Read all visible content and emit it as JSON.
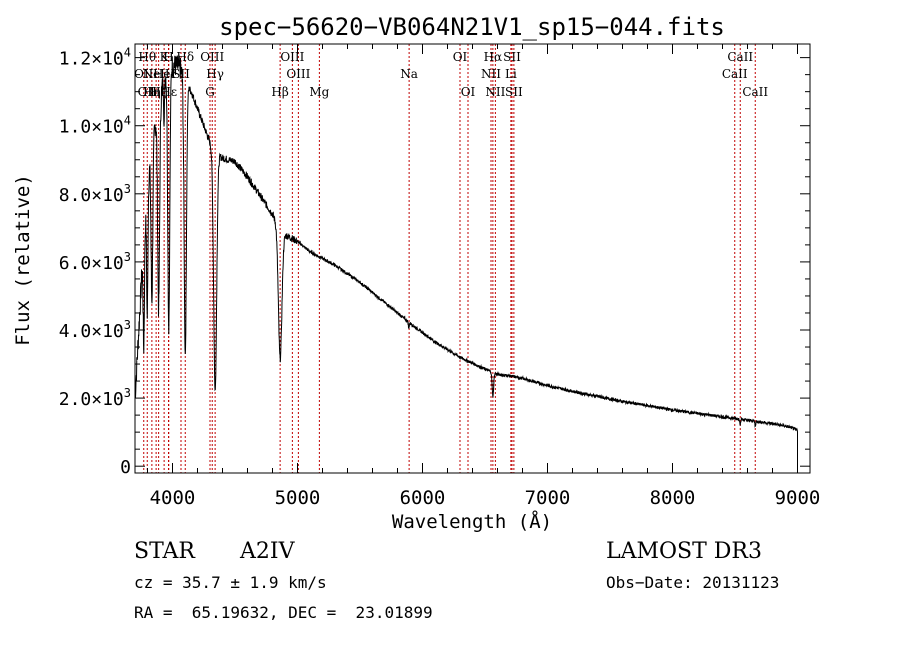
{
  "chart_data": {
    "type": "line",
    "title": "spec−56620−VB064N21V1_sp15−044.fits",
    "xlabel": "Wavelength (Å)",
    "ylabel": "Flux (relative)",
    "xlim": [
      3700,
      9100
    ],
    "ylim": [
      -200,
      12400
    ],
    "xticks": [
      4000,
      5000,
      6000,
      7000,
      8000,
      9000
    ],
    "yticks": [
      {
        "value": 0,
        "mant": "0",
        "exp": ""
      },
      {
        "value": 2000,
        "mant": "2.0×10",
        "exp": "3"
      },
      {
        "value": 4000,
        "mant": "4.0×10",
        "exp": "3"
      },
      {
        "value": 6000,
        "mant": "6.0×10",
        "exp": "3"
      },
      {
        "value": 8000,
        "mant": "8.0×10",
        "exp": "3"
      },
      {
        "value": 10000,
        "mant": "1.0×10",
        "exp": "4"
      },
      {
        "value": 12000,
        "mant": "1.2×10",
        "exp": "4"
      }
    ],
    "spectrum": {
      "continuum": [
        [
          3700,
          2000
        ],
        [
          3760,
          6000
        ],
        [
          3820,
          9000
        ],
        [
          3880,
          10500
        ],
        [
          3940,
          11500
        ],
        [
          4000,
          11800
        ],
        [
          4060,
          11700
        ],
        [
          4100,
          11300
        ],
        [
          4150,
          11000
        ],
        [
          4200,
          10500
        ],
        [
          4250,
          10000
        ],
        [
          4300,
          9500
        ],
        [
          4340,
          9200
        ],
        [
          4400,
          9050
        ],
        [
          4500,
          8950
        ],
        [
          4600,
          8500
        ],
        [
          4700,
          7950
        ],
        [
          4800,
          7400
        ],
        [
          4850,
          7000
        ],
        [
          4900,
          6800
        ],
        [
          5000,
          6600
        ],
        [
          5100,
          6300
        ],
        [
          5300,
          5900
        ],
        [
          5500,
          5400
        ],
        [
          5700,
          4800
        ],
        [
          5900,
          4200
        ],
        [
          6100,
          3650
        ],
        [
          6300,
          3200
        ],
        [
          6500,
          2850
        ],
        [
          6600,
          2700
        ],
        [
          6700,
          2650
        ],
        [
          6800,
          2580
        ],
        [
          7000,
          2370
        ],
        [
          7200,
          2200
        ],
        [
          7400,
          2050
        ],
        [
          7600,
          1900
        ],
        [
          7800,
          1780
        ],
        [
          8000,
          1650
        ],
        [
          8200,
          1550
        ],
        [
          8400,
          1450
        ],
        [
          8600,
          1350
        ],
        [
          8800,
          1250
        ],
        [
          8900,
          1180
        ],
        [
          8950,
          1130
        ],
        [
          9000,
          1050
        ]
      ],
      "absorption_lines": [
        [
          3770,
          3000,
          5
        ],
        [
          3798,
          3500,
          5
        ],
        [
          3835,
          4500,
          7
        ],
        [
          3889,
          6000,
          8
        ],
        [
          3933,
          1500,
          3
        ],
        [
          3970,
          7500,
          8
        ],
        [
          4102,
          8000,
          9
        ],
        [
          4341,
          7000,
          12
        ],
        [
          4861,
          3800,
          14
        ],
        [
          5890,
          200,
          3
        ],
        [
          6563,
          700,
          6
        ],
        [
          8542,
          150,
          3
        ],
        [
          8662,
          150,
          3
        ]
      ]
    },
    "line_markers": [
      {
        "wavelength": 3770,
        "label": "OII",
        "row": 1
      },
      {
        "wavelength": 3798,
        "label": "Hθ",
        "row": 0
      },
      {
        "wavelength": 3798,
        "label": "OII",
        "row": 2
      },
      {
        "wavelength": 3835,
        "label": "Hη",
        "row": 2
      },
      {
        "wavelength": 3869,
        "label": "NeII",
        "row": 1
      },
      {
        "wavelength": 3889,
        "label": "Hζ",
        "row": 2
      },
      {
        "wavelength": 3933,
        "label": "K",
        "row": 0
      },
      {
        "wavelength": 3933,
        "label": "HeI",
        "row": 1
      },
      {
        "wavelength": 3968,
        "label": "H",
        "row": 0
      },
      {
        "wavelength": 3970,
        "label": "Hε",
        "row": 2
      },
      {
        "wavelength": 4068,
        "label": "SII",
        "row": 1
      },
      {
        "wavelength": 4102,
        "label": "Hδ",
        "row": 0
      },
      {
        "wavelength": 4300,
        "label": "G",
        "row": 2
      },
      {
        "wavelength": 4318,
        "label": "OIII",
        "row": 0
      },
      {
        "wavelength": 4341,
        "label": "Hγ",
        "row": 1
      },
      {
        "wavelength": 4861,
        "label": "Hβ",
        "row": 2
      },
      {
        "wavelength": 4959,
        "label": "OIII",
        "row": 0
      },
      {
        "wavelength": 5007,
        "label": "OIII",
        "row": 1
      },
      {
        "wavelength": 5175,
        "label": "Mg",
        "row": 2
      },
      {
        "wavelength": 5893,
        "label": "Na",
        "row": 1
      },
      {
        "wavelength": 6300,
        "label": "OI",
        "row": 0
      },
      {
        "wavelength": 6364,
        "label": "OI",
        "row": 2
      },
      {
        "wavelength": 6548,
        "label": "NII",
        "row": 1
      },
      {
        "wavelength": 6563,
        "label": "Hα",
        "row": 0
      },
      {
        "wavelength": 6583,
        "label": "NII",
        "row": 2
      },
      {
        "wavelength": 6707,
        "label": "Li",
        "row": 1
      },
      {
        "wavelength": 6716,
        "label": "SII",
        "row": 0
      },
      {
        "wavelength": 6731,
        "label": "SII",
        "row": 2
      },
      {
        "wavelength": 8498,
        "label": "CaII",
        "row": 1
      },
      {
        "wavelength": 8542,
        "label": "CaII",
        "row": 0
      },
      {
        "wavelength": 8662,
        "label": "CaII",
        "row": 2
      }
    ]
  },
  "info": {
    "object_class": "STAR",
    "subclass": "A2IV",
    "survey": "LAMOST DR3",
    "redshift": "cz = 35.7 ± 1.9 km/s",
    "obs_date": "Obs−Date: 20131123",
    "coords": "RA =  65.19632, DEC =  23.01899"
  },
  "colors": {
    "spectrum": "#000000",
    "marker": "#c00000",
    "axis": "#000000"
  }
}
